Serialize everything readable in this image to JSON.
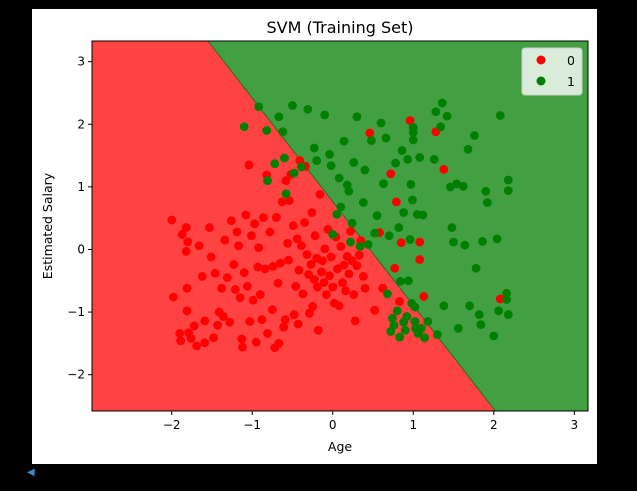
{
  "chart_data": {
    "type": "scatter",
    "title": "SVM (Training Set)",
    "xlabel": "Age",
    "ylabel": "Estimated Salary",
    "xlim": [
      -2.99,
      3.17
    ],
    "ylim": [
      -2.58,
      3.33
    ],
    "xticks": [
      -2,
      -1,
      0,
      1,
      2,
      3
    ],
    "yticks": [
      -2,
      -1,
      0,
      1,
      2,
      3
    ],
    "legend": {
      "position": "top-right",
      "entries": [
        "0",
        "1"
      ]
    },
    "colors": {
      "0": "#ff0000",
      "1": "#008000",
      "region_0": "#ff4242",
      "region_1": "#42a042"
    },
    "decision_boundary": [
      [
        -1.55,
        3.33
      ],
      [
        2.02,
        -2.58
      ]
    ],
    "series": [
      {
        "name": "0",
        "points": [
          [
            -2.0,
            0.47
          ],
          [
            -1.98,
            -0.76
          ],
          [
            -1.9,
            -1.34
          ],
          [
            -1.89,
            -1.46
          ],
          [
            -1.87,
            0.24
          ],
          [
            -1.82,
            0.35
          ],
          [
            -1.82,
            -0.03
          ],
          [
            -1.81,
            -0.98
          ],
          [
            -1.81,
            -0.62
          ],
          [
            -1.8,
            0.12
          ],
          [
            -1.79,
            -1.33
          ],
          [
            -1.76,
            -1.42
          ],
          [
            -1.72,
            -1.22
          ],
          [
            -1.69,
            -1.54
          ],
          [
            -1.66,
            0.06
          ],
          [
            -1.62,
            -0.43
          ],
          [
            -1.59,
            -1.14
          ],
          [
            -1.59,
            -1.49
          ],
          [
            -1.53,
            0.35
          ],
          [
            -1.51,
            -0.12
          ],
          [
            -1.48,
            -1.41
          ],
          [
            -1.46,
            -0.38
          ],
          [
            -1.43,
            -1.21
          ],
          [
            -1.41,
            -1.0
          ],
          [
            -1.38,
            -0.62
          ],
          [
            -1.36,
            -1.07
          ],
          [
            -1.34,
            0.15
          ],
          [
            -1.31,
            -0.45
          ],
          [
            -1.28,
            -1.16
          ],
          [
            -1.26,
            0.46
          ],
          [
            -1.23,
            -0.24
          ],
          [
            -1.21,
            -0.64
          ],
          [
            -1.19,
            0.28
          ],
          [
            -1.17,
            0.06
          ],
          [
            -1.15,
            -0.77
          ],
          [
            -1.13,
            -1.43
          ],
          [
            -1.12,
            -1.56
          ],
          [
            -1.1,
            -0.37
          ],
          [
            -1.08,
            0.55
          ],
          [
            -1.06,
            -0.59
          ],
          [
            -1.04,
            1.35
          ],
          [
            -1.03,
            -1.15
          ],
          [
            -1.01,
            0.22
          ],
          [
            -0.99,
            -0.81
          ],
          [
            -0.97,
            0.41
          ],
          [
            -0.95,
            -1.48
          ],
          [
            -0.93,
            -0.28
          ],
          [
            -0.92,
            0.03
          ],
          [
            -0.9,
            -0.72
          ],
          [
            -0.88,
            -1.12
          ],
          [
            -0.86,
            0.51
          ],
          [
            -0.84,
            -0.31
          ],
          [
            -0.82,
            1.19
          ],
          [
            -0.81,
            -1.34
          ],
          [
            -0.78,
            0.28
          ],
          [
            -0.75,
            -0.96
          ],
          [
            -0.74,
            -0.27
          ],
          [
            -0.72,
            -1.57
          ],
          [
            -0.7,
            0.51
          ],
          [
            -0.68,
            -0.54
          ],
          [
            -0.67,
            -1.5
          ],
          [
            -0.65,
            -0.22
          ],
          [
            -0.63,
            0.76
          ],
          [
            -0.61,
            -1.24
          ],
          [
            -0.59,
            -1.12
          ],
          [
            -0.58,
            1.1
          ],
          [
            -0.56,
            0.1
          ],
          [
            -0.55,
            -0.17
          ],
          [
            -0.54,
            0.78
          ],
          [
            -0.52,
            1.2
          ],
          [
            -0.49,
            0.38
          ],
          [
            -0.48,
            -1.04
          ],
          [
            -0.46,
            -0.59
          ],
          [
            -0.44,
            0.17
          ],
          [
            -0.43,
            -1.19
          ],
          [
            -0.42,
            -0.33
          ],
          [
            -0.41,
            1.42
          ],
          [
            -0.39,
            0.06
          ],
          [
            -0.37,
            -0.71
          ],
          [
            -0.35,
            0.43
          ],
          [
            -0.34,
            1.33
          ],
          [
            -0.32,
            -0.08
          ],
          [
            -0.3,
            -0.4
          ],
          [
            -0.29,
            -1.02
          ],
          [
            -0.27,
            -0.24
          ],
          [
            -0.26,
            0.59
          ],
          [
            -0.25,
            -0.91
          ],
          [
            -0.23,
            -0.48
          ],
          [
            -0.22,
            0.22
          ],
          [
            -0.2,
            -0.14
          ],
          [
            -0.19,
            -0.6
          ],
          [
            -0.18,
            -1.29
          ],
          [
            -0.16,
            0.88
          ],
          [
            -0.14,
            -0.36
          ],
          [
            -0.13,
            -0.18
          ],
          [
            -0.11,
            -0.53
          ],
          [
            -0.1,
            0.01
          ],
          [
            -0.08,
            -0.72
          ],
          [
            -0.06,
            0.32
          ],
          [
            -0.04,
            -0.42
          ],
          [
            -0.02,
            -0.12
          ],
          [
            0.0,
            -0.6
          ],
          [
            0.02,
            -0.86
          ],
          [
            0.04,
            0.2
          ],
          [
            0.06,
            -0.31
          ],
          [
            0.08,
            -0.9
          ],
          [
            0.1,
            0.05
          ],
          [
            0.12,
            -0.53
          ],
          [
            0.14,
            -0.25
          ],
          [
            0.16,
            -0.66
          ],
          [
            0.18,
            -0.11
          ],
          [
            0.2,
            -0.39
          ],
          [
            0.22,
            0.29
          ],
          [
            0.24,
            -0.18
          ],
          [
            0.26,
            -0.72
          ],
          [
            0.28,
            -1.14
          ],
          [
            0.3,
            -0.26
          ],
          [
            0.33,
            -0.09
          ],
          [
            0.35,
            0.14
          ],
          [
            0.38,
            -0.43
          ],
          [
            0.4,
            -0.62
          ],
          [
            0.46,
            1.86
          ],
          [
            0.52,
            -0.97
          ],
          [
            0.58,
            0.27
          ],
          [
            0.62,
            -0.62
          ],
          [
            0.72,
            1.21
          ],
          [
            0.77,
            -0.3
          ],
          [
            0.79,
            0.76
          ],
          [
            0.83,
            -0.83
          ],
          [
            0.85,
            0.11
          ],
          [
            0.96,
            2.06
          ],
          [
            1.08,
            0.12
          ],
          [
            1.08,
            -0.16
          ],
          [
            1.13,
            -0.75
          ],
          [
            1.28,
            1.88
          ],
          [
            1.38,
            1.28
          ],
          [
            2.08,
            -0.79
          ]
        ]
      },
      {
        "name": "1",
        "points": [
          [
            -1.1,
            1.96
          ],
          [
            -0.92,
            2.28
          ],
          [
            -0.82,
            1.9
          ],
          [
            -0.81,
            1.1
          ],
          [
            -0.72,
            1.37
          ],
          [
            -0.67,
            2.12
          ],
          [
            -0.62,
            1.88
          ],
          [
            -0.6,
            1.46
          ],
          [
            -0.58,
            0.89
          ],
          [
            -0.5,
            2.3
          ],
          [
            -0.48,
            1.22
          ],
          [
            -0.39,
            1.32
          ],
          [
            -0.31,
            2.24
          ],
          [
            -0.23,
            1.62
          ],
          [
            -0.2,
            1.42
          ],
          [
            -0.1,
            2.15
          ],
          [
            -0.04,
            1.52
          ],
          [
            -0.02,
            1.34
          ],
          [
            0.0,
            0.24
          ],
          [
            0.05,
            0.56
          ],
          [
            0.08,
            1.14
          ],
          [
            0.1,
            0.68
          ],
          [
            0.14,
            1.73
          ],
          [
            0.18,
            1.03
          ],
          [
            0.2,
            0.93
          ],
          [
            0.22,
            0.12
          ],
          [
            0.24,
            0.42
          ],
          [
            0.26,
            1.39
          ],
          [
            0.3,
            2.12
          ],
          [
            0.34,
            0.05
          ],
          [
            0.38,
            0.75
          ],
          [
            0.4,
            1.27
          ],
          [
            0.44,
            0.08
          ],
          [
            0.48,
            1.74
          ],
          [
            0.52,
            0.26
          ],
          [
            0.55,
            0.54
          ],
          [
            0.6,
            2.02
          ],
          [
            0.63,
            1.05
          ],
          [
            0.66,
            1.78
          ],
          [
            0.68,
            -0.71
          ],
          [
            0.7,
            0.22
          ],
          [
            0.72,
            -1.31
          ],
          [
            0.74,
            -1.1
          ],
          [
            0.76,
            -1.21
          ],
          [
            0.78,
            1.38
          ],
          [
            0.8,
            -0.98
          ],
          [
            0.82,
            0.35
          ],
          [
            0.83,
            -1.4
          ],
          [
            0.84,
            -0.51
          ],
          [
            0.86,
            1.58
          ],
          [
            0.88,
            -1.16
          ],
          [
            0.88,
            0.59
          ],
          [
            0.9,
            -1.29
          ],
          [
            0.92,
            -1.07
          ],
          [
            0.93,
            1.44
          ],
          [
            0.94,
            -0.5
          ],
          [
            0.96,
            0.16
          ],
          [
            0.97,
            1.04
          ],
          [
            0.98,
            -0.86
          ],
          [
            0.99,
            0.79
          ],
          [
            1.0,
            1.75
          ],
          [
            1.0,
            1.87
          ],
          [
            1.0,
            1.95
          ],
          [
            1.02,
            -0.92
          ],
          [
            1.02,
            -1.15
          ],
          [
            1.03,
            -1.26
          ],
          [
            1.05,
            0.56
          ],
          [
            1.06,
            -1.34
          ],
          [
            1.08,
            1.47
          ],
          [
            1.1,
            -1.26
          ],
          [
            1.12,
            0.55
          ],
          [
            1.14,
            -1.41
          ],
          [
            1.18,
            -1.15
          ],
          [
            1.26,
            1.44
          ],
          [
            1.28,
            2.2
          ],
          [
            1.3,
            -1.36
          ],
          [
            1.34,
            1.96
          ],
          [
            1.36,
            2.34
          ],
          [
            1.38,
            -0.9
          ],
          [
            1.42,
            2.13
          ],
          [
            1.46,
            1.0
          ],
          [
            1.48,
            0.35
          ],
          [
            1.5,
            0.12
          ],
          [
            1.54,
            1.05
          ],
          [
            1.56,
            -1.26
          ],
          [
            1.62,
            1.01
          ],
          [
            1.64,
            0.07
          ],
          [
            1.68,
            1.6
          ],
          [
            1.7,
            -0.9
          ],
          [
            1.76,
            1.82
          ],
          [
            1.78,
            -0.3
          ],
          [
            1.82,
            -1.04
          ],
          [
            1.84,
            -1.2
          ],
          [
            1.86,
            0.13
          ],
          [
            1.9,
            0.93
          ],
          [
            1.92,
            0.75
          ],
          [
            2.0,
            -1.38
          ],
          [
            2.04,
            0.17
          ],
          [
            2.06,
            -0.98
          ],
          [
            2.08,
            2.14
          ],
          [
            2.16,
            -0.7
          ],
          [
            2.16,
            -0.8
          ],
          [
            2.18,
            1.11
          ],
          [
            2.18,
            -1.04
          ],
          [
            2.18,
            0.94
          ]
        ]
      }
    ]
  }
}
